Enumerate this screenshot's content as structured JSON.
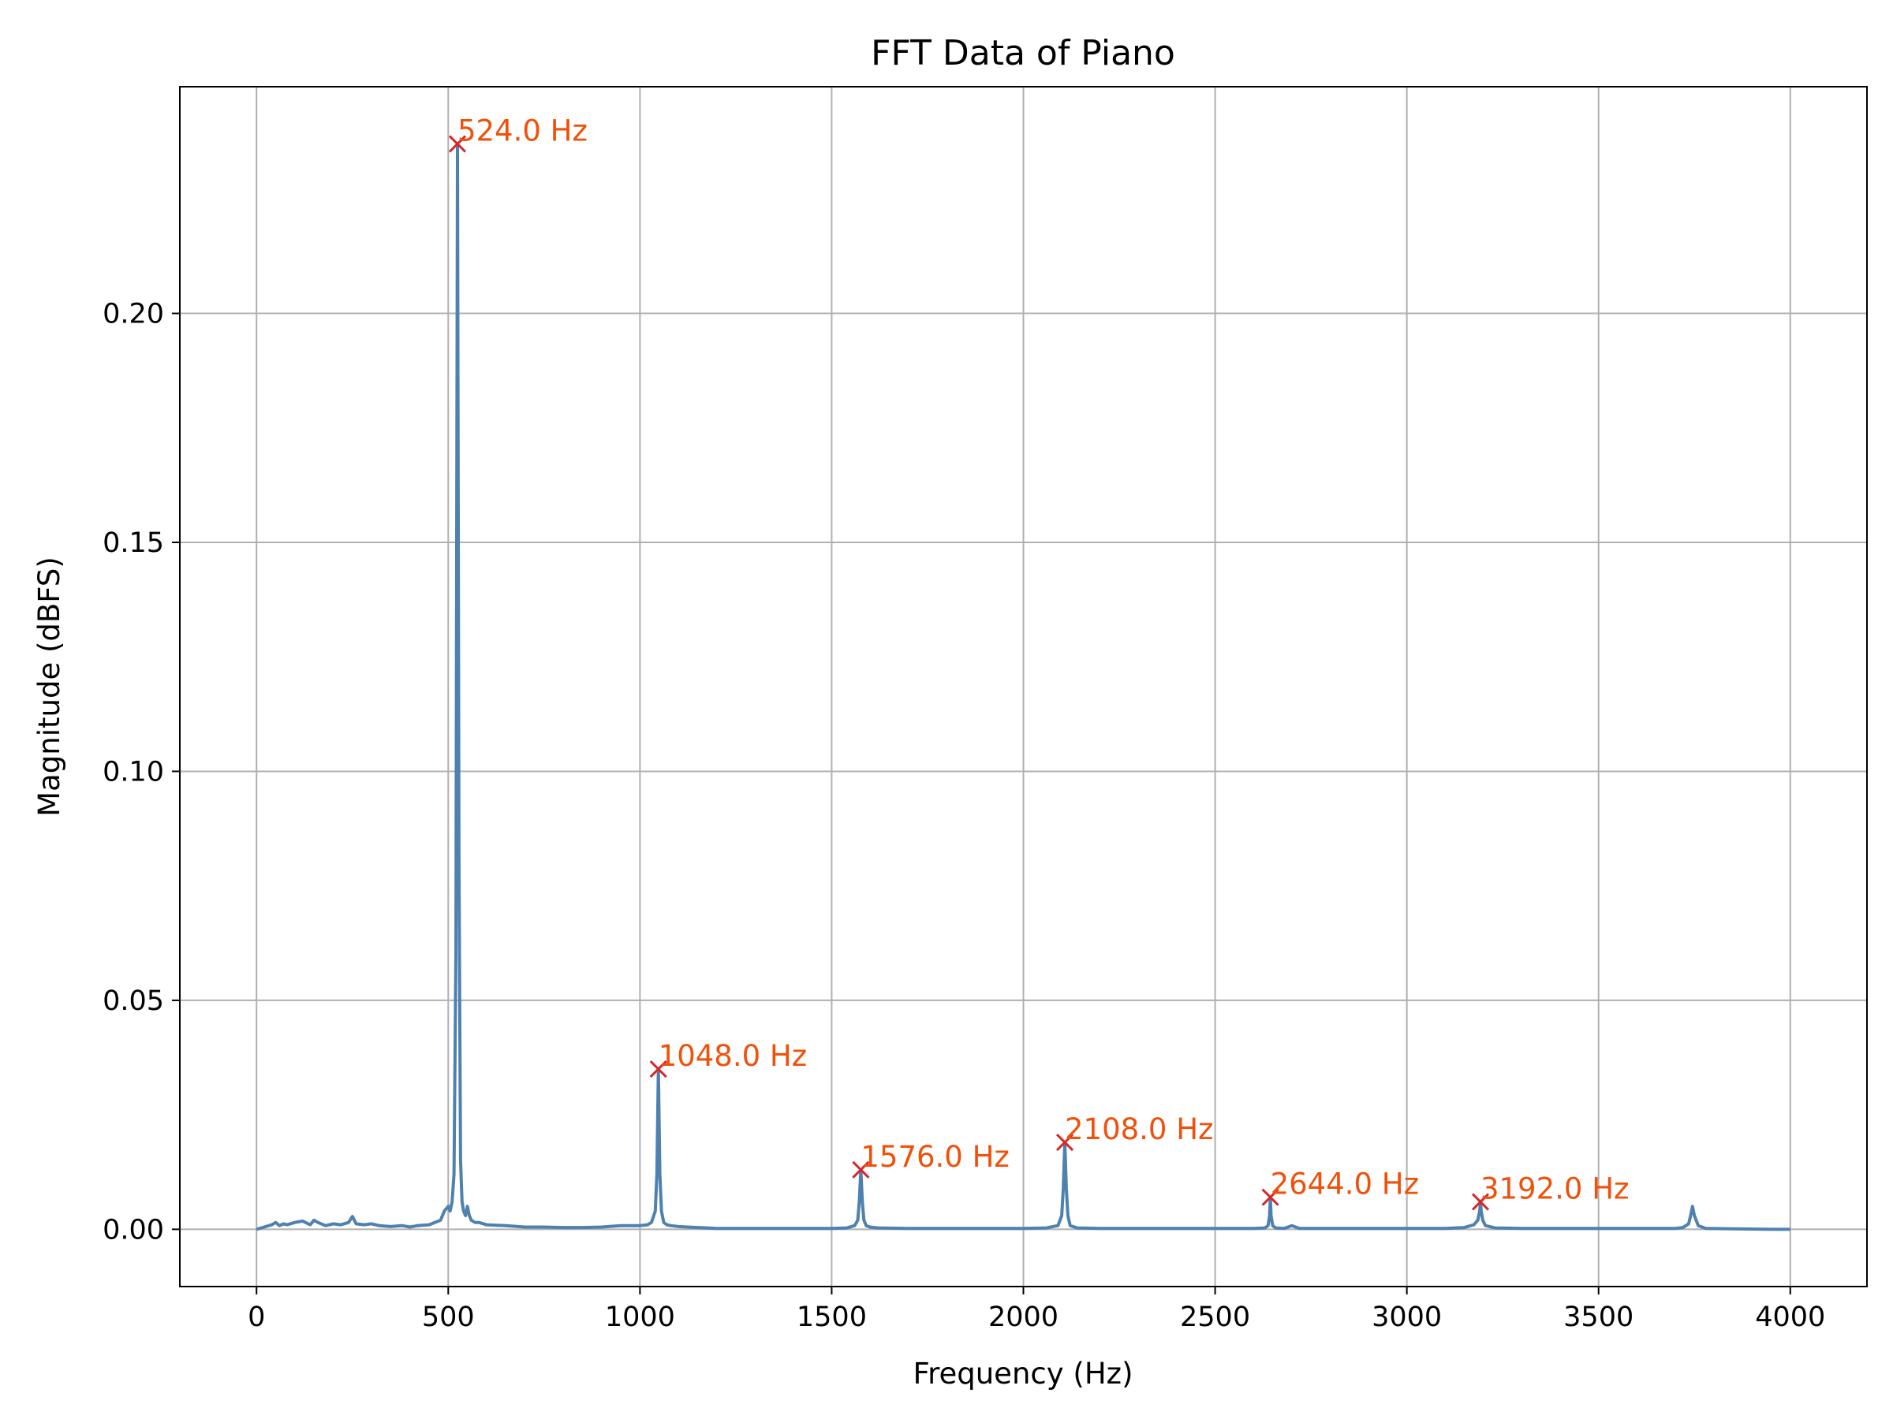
{
  "colors": {
    "line": "#4f81af",
    "marker": "#d62728",
    "annotation": "#f0500a",
    "grid": "#b0b0b0",
    "axes": "#000000"
  },
  "chart_data": {
    "type": "line",
    "title": "FFT Data of Piano",
    "xlabel": "Frequency (Hz)",
    "ylabel": "Magnitude (dBFS)",
    "xlim": [
      -200,
      4200
    ],
    "ylim": [
      -0.0125,
      0.2495
    ],
    "xticks": [
      0,
      500,
      1000,
      1500,
      2000,
      2500,
      3000,
      3500,
      4000
    ],
    "xtick_labels": [
      "0",
      "500",
      "1000",
      "1500",
      "2000",
      "2500",
      "3000",
      "3500",
      "4000"
    ],
    "yticks": [
      0.0,
      0.05,
      0.1,
      0.15,
      0.2
    ],
    "ytick_labels": [
      "0.00",
      "0.05",
      "0.10",
      "0.15",
      "0.20"
    ],
    "grid": true,
    "legend": "none",
    "series": [
      {
        "x": [
          0,
          20,
          40,
          50,
          60,
          70,
          80,
          100,
          120,
          140,
          150,
          160,
          180,
          200,
          220,
          240,
          250,
          260,
          280,
          300,
          320,
          350,
          380,
          400,
          420,
          450,
          480,
          490,
          500,
          505,
          510,
          515,
          520,
          524,
          528,
          532,
          536,
          540,
          545,
          550,
          555,
          560,
          570,
          580,
          600,
          650,
          700,
          750,
          800,
          850,
          900,
          950,
          1000,
          1020,
          1030,
          1040,
          1044,
          1048,
          1052,
          1056,
          1062,
          1070,
          1080,
          1100,
          1150,
          1200,
          1300,
          1400,
          1500,
          1540,
          1560,
          1568,
          1572,
          1576,
          1580,
          1584,
          1590,
          1600,
          1620,
          1700,
          1800,
          1900,
          2000,
          2060,
          2090,
          2100,
          2104,
          2108,
          2112,
          2116,
          2122,
          2140,
          2200,
          2300,
          2400,
          2500,
          2600,
          2630,
          2638,
          2642,
          2644,
          2646,
          2650,
          2658,
          2680,
          2700,
          2720,
          2800,
          2900,
          3000,
          3100,
          3150,
          3175,
          3185,
          3190,
          3192,
          3194,
          3198,
          3205,
          3230,
          3300,
          3400,
          3500,
          3600,
          3700,
          3720,
          3735,
          3740,
          3745,
          3750,
          3760,
          3780,
          3850,
          3950,
          4000
        ],
        "y": [
          0.0,
          0.0005,
          0.001,
          0.0015,
          0.0008,
          0.0012,
          0.001,
          0.0015,
          0.0018,
          0.001,
          0.002,
          0.0015,
          0.0008,
          0.0012,
          0.001,
          0.0015,
          0.0028,
          0.0012,
          0.001,
          0.0012,
          0.0008,
          0.0006,
          0.0008,
          0.0005,
          0.0008,
          0.001,
          0.002,
          0.004,
          0.005,
          0.004,
          0.006,
          0.012,
          0.06,
          0.237,
          0.08,
          0.015,
          0.006,
          0.004,
          0.003,
          0.005,
          0.003,
          0.002,
          0.0015,
          0.0015,
          0.001,
          0.0008,
          0.0005,
          0.0005,
          0.0004,
          0.0004,
          0.0005,
          0.0008,
          0.0008,
          0.001,
          0.0015,
          0.004,
          0.012,
          0.035,
          0.012,
          0.004,
          0.0015,
          0.001,
          0.0008,
          0.0006,
          0.0004,
          0.0002,
          0.0002,
          0.0002,
          0.0002,
          0.0003,
          0.0008,
          0.002,
          0.006,
          0.013,
          0.006,
          0.002,
          0.0008,
          0.0005,
          0.0003,
          0.0002,
          0.0002,
          0.0002,
          0.0002,
          0.0003,
          0.0008,
          0.003,
          0.009,
          0.019,
          0.009,
          0.003,
          0.0008,
          0.0003,
          0.0002,
          0.0002,
          0.0002,
          0.0002,
          0.0002,
          0.0003,
          0.0008,
          0.003,
          0.007,
          0.003,
          0.0008,
          0.0003,
          0.0002,
          0.0008,
          0.0002,
          0.0002,
          0.0002,
          0.0002,
          0.0002,
          0.0004,
          0.001,
          0.002,
          0.004,
          0.006,
          0.004,
          0.002,
          0.0008,
          0.0003,
          0.0002,
          0.0002,
          0.0002,
          0.0002,
          0.0002,
          0.0004,
          0.0012,
          0.003,
          0.005,
          0.003,
          0.0008,
          0.0002,
          0.0001,
          0.0,
          0.0
        ]
      }
    ],
    "peaks": [
      {
        "x": 524,
        "y": 0.237,
        "label": "524.0 Hz"
      },
      {
        "x": 1048,
        "y": 0.035,
        "label": "1048.0 Hz"
      },
      {
        "x": 1576,
        "y": 0.013,
        "label": "1576.0 Hz"
      },
      {
        "x": 2108,
        "y": 0.019,
        "label": "2108.0 Hz"
      },
      {
        "x": 2644,
        "y": 0.007,
        "label": "2644.0 Hz"
      },
      {
        "x": 3192,
        "y": 0.006,
        "label": "3192.0 Hz"
      }
    ]
  }
}
